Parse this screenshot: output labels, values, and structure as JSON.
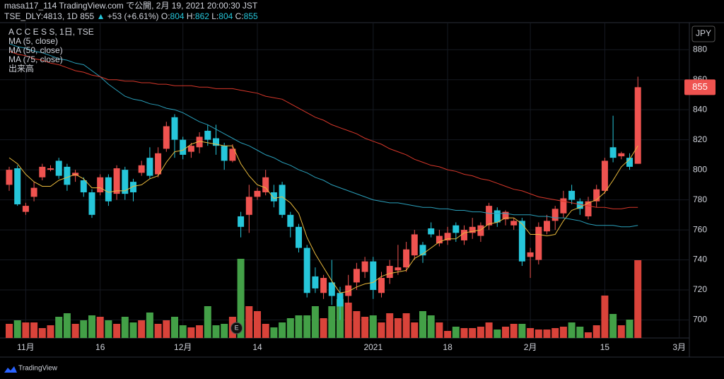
{
  "header": {
    "line1": "masa117_114 TradingView.com で公開, 2月 19, 2021 20:00:30 JST",
    "symbol": "TSE_DLY:4813, 1D",
    "arrow": "▲",
    "change": "+53 (+6.61%)",
    "o": "O:",
    "h": "H:",
    "l": "L:",
    "c": "C:"
  },
  "legend": {
    "title": "A C C E S S, 1日, TSE"
  },
  "currency": "JPY",
  "footer": {
    "brand": "TradingView"
  },
  "event_marker": "E",
  "chart_data": {
    "type": "candlestick",
    "up_color": "#ef5350",
    "down_color": "#26c6da",
    "categories": [
      null,
      null,
      "11月",
      null,
      null,
      null,
      null,
      null,
      null,
      null,
      null,
      "16",
      null,
      null,
      null,
      null,
      null,
      null,
      null,
      null,
      null,
      "12月",
      null,
      null,
      null,
      null,
      null,
      null,
      null,
      null,
      "14",
      null,
      null,
      null,
      null,
      null,
      null,
      null,
      null,
      null,
      null,
      null,
      null,
      null,
      "2021",
      null,
      null,
      null,
      null,
      null,
      null,
      null,
      null,
      "18",
      null,
      null,
      null,
      null,
      null,
      null,
      null,
      null,
      null,
      "2月",
      null,
      null,
      null,
      null,
      null,
      null,
      null,
      null,
      "15",
      null,
      null,
      null,
      null,
      null,
      null,
      null,
      null,
      "3月"
    ],
    "open": [
      790,
      801,
      772,
      782,
      795,
      800,
      806,
      802,
      796,
      793,
      785,
      785,
      795,
      784,
      800,
      792,
      798,
      808,
      797,
      814,
      835,
      820,
      812,
      815,
      826,
      821,
      816,
      806,
      769,
      770,
      782,
      785,
      785,
      790,
      770,
      762,
      748,
      729,
      718,
      725,
      718,
      716,
      725,
      732,
      739,
      718,
      728,
      733,
      735,
      743,
      750,
      761,
      751,
      753,
      763,
      753,
      758,
      756,
      763,
      773,
      767,
      763,
      766,
      742,
      740,
      759,
      766,
      771,
      786,
      779,
      769,
      779,
      786,
      815,
      809,
      808,
      804,
      null,
      null,
      null,
      null,
      null
    ],
    "high": [
      802,
      803,
      778,
      792,
      804,
      803,
      808,
      804,
      800,
      795,
      787,
      797,
      797,
      803,
      802,
      794,
      806,
      815,
      815,
      832,
      837,
      822,
      818,
      825,
      830,
      830,
      818,
      817,
      772,
      790,
      788,
      800,
      790,
      792,
      772,
      764,
      750,
      735,
      730,
      740,
      722,
      730,
      738,
      742,
      742,
      732,
      740,
      750,
      752,
      760,
      752,
      765,
      760,
      762,
      765,
      763,
      768,
      765,
      778,
      775,
      773,
      768,
      768,
      748,
      765,
      770,
      776,
      786,
      790,
      781,
      782,
      790,
      808,
      836,
      812,
      811,
      862,
      null,
      null,
      null,
      null,
      null
    ],
    "low": [
      786,
      776,
      770,
      779,
      793,
      799,
      794,
      786,
      792,
      782,
      768,
      783,
      776,
      780,
      780,
      779,
      796,
      794,
      795,
      812,
      808,
      807,
      808,
      811,
      816,
      810,
      800,
      805,
      755,
      758,
      780,
      783,
      775,
      768,
      755,
      745,
      715,
      718,
      714,
      710,
      700,
      710,
      720,
      728,
      714,
      715,
      724,
      730,
      732,
      740,
      738,
      755,
      749,
      750,
      752,
      750,
      754,
      752,
      760,
      762,
      763,
      760,
      736,
      728,
      737,
      757,
      760,
      768,
      777,
      770,
      767,
      775,
      784,
      805,
      807,
      800,
      804,
      null,
      null,
      null,
      null,
      null
    ],
    "close": [
      800,
      777,
      776,
      788,
      802,
      801,
      796,
      790,
      798,
      785,
      770,
      795,
      779,
      801,
      784,
      785,
      803,
      796,
      811,
      829,
      820,
      810,
      816,
      822,
      820,
      816,
      806,
      814,
      762,
      782,
      786,
      795,
      779,
      770,
      762,
      748,
      718,
      721,
      728,
      716,
      709,
      723,
      734,
      739,
      720,
      728,
      736,
      735,
      747,
      757,
      743,
      757,
      756,
      758,
      758,
      760,
      762,
      763,
      776,
      765,
      772,
      766,
      739,
      745,
      762,
      766,
      774,
      781,
      780,
      774,
      779,
      787,
      806,
      808,
      811,
      802,
      855,
      null,
      null,
      null,
      null,
      null
    ],
    "volume": {
      "name": "出来高",
      "values": [
        20,
        25,
        22,
        22,
        14,
        18,
        30,
        35,
        20,
        25,
        32,
        30,
        25,
        20,
        30,
        22,
        25,
        36,
        20,
        25,
        30,
        18,
        15,
        18,
        45,
        18,
        20,
        30,
        112,
        45,
        38,
        20,
        15,
        22,
        28,
        32,
        32,
        45,
        28,
        45,
        55,
        50,
        38,
        30,
        32,
        22,
        35,
        28,
        35,
        22,
        38,
        32,
        22,
        10,
        16,
        14,
        14,
        16,
        22,
        12,
        16,
        20,
        20,
        14,
        12,
        12,
        14,
        16,
        22,
        16,
        8,
        18,
        60,
        34,
        18,
        26,
        110,
        null,
        null,
        null,
        null,
        null
      ]
    },
    "volume_ylim": [
      0,
      446
    ],
    "series": [
      {
        "name": "MA (5, close)",
        "color": "#e9b93c",
        "values": [
          808,
          804,
          797,
          792,
          789,
          789,
          793,
          795,
          797,
          794,
          788,
          788,
          785,
          786,
          786,
          789,
          790,
          794,
          796,
          805,
          812,
          813,
          817,
          819,
          818,
          817,
          816,
          816,
          804,
          796,
          790,
          788,
          781,
          782,
          778,
          771,
          755,
          744,
          735,
          726,
          718,
          719,
          722,
          724,
          725,
          729,
          731,
          732,
          733,
          741,
          744,
          748,
          752,
          754,
          754,
          758,
          759,
          760,
          764,
          765,
          768,
          768,
          764,
          757,
          757,
          756,
          757,
          766,
          773,
          775,
          778,
          780,
          785,
          793,
          802,
          807,
          816,
          null,
          null,
          null,
          null,
          null
        ]
      },
      {
        "name": "MA (50, close)",
        "color": "#2a9fba",
        "values": [
          884,
          882,
          881,
          879,
          878,
          876,
          874,
          873,
          871,
          870,
          866,
          862,
          857,
          853,
          849,
          847,
          846,
          844,
          843,
          841,
          840,
          838,
          835,
          832,
          830,
          827,
          824,
          821,
          818,
          816,
          813,
          810,
          808,
          805,
          803,
          800,
          798,
          795,
          793,
          790,
          788,
          786,
          784,
          782,
          780,
          779,
          778,
          778,
          777,
          776,
          775,
          775,
          774,
          774,
          773,
          773,
          772,
          772,
          771,
          771,
          771,
          770,
          770,
          770,
          769,
          769,
          768,
          768,
          767,
          766,
          764,
          763,
          763,
          763,
          762,
          762,
          763,
          null,
          null,
          null,
          null,
          null
        ]
      },
      {
        "name": "MA (75, close)",
        "color": "#d6372a",
        "values": [
          879,
          877,
          876,
          874,
          873,
          871,
          870,
          868,
          866,
          865,
          863,
          862,
          860,
          860,
          859,
          859,
          858,
          858,
          857,
          857,
          856,
          856,
          856,
          855,
          855,
          854,
          854,
          854,
          853,
          852,
          851,
          849,
          848,
          847,
          844,
          841,
          838,
          835,
          833,
          830,
          828,
          826,
          824,
          821,
          819,
          817,
          814,
          812,
          810,
          807,
          805,
          803,
          802,
          800,
          799,
          797,
          796,
          794,
          793,
          791,
          789,
          787,
          786,
          784,
          782,
          781,
          780,
          779,
          778,
          777,
          776,
          775,
          775,
          774,
          774,
          775,
          775,
          null,
          null,
          null,
          null,
          null
        ]
      }
    ],
    "event_index": 28,
    "ylim": [
      688,
      898
    ],
    "yticks": [
      700,
      720,
      740,
      760,
      780,
      800,
      820,
      840,
      860,
      880
    ],
    "grid": true
  }
}
